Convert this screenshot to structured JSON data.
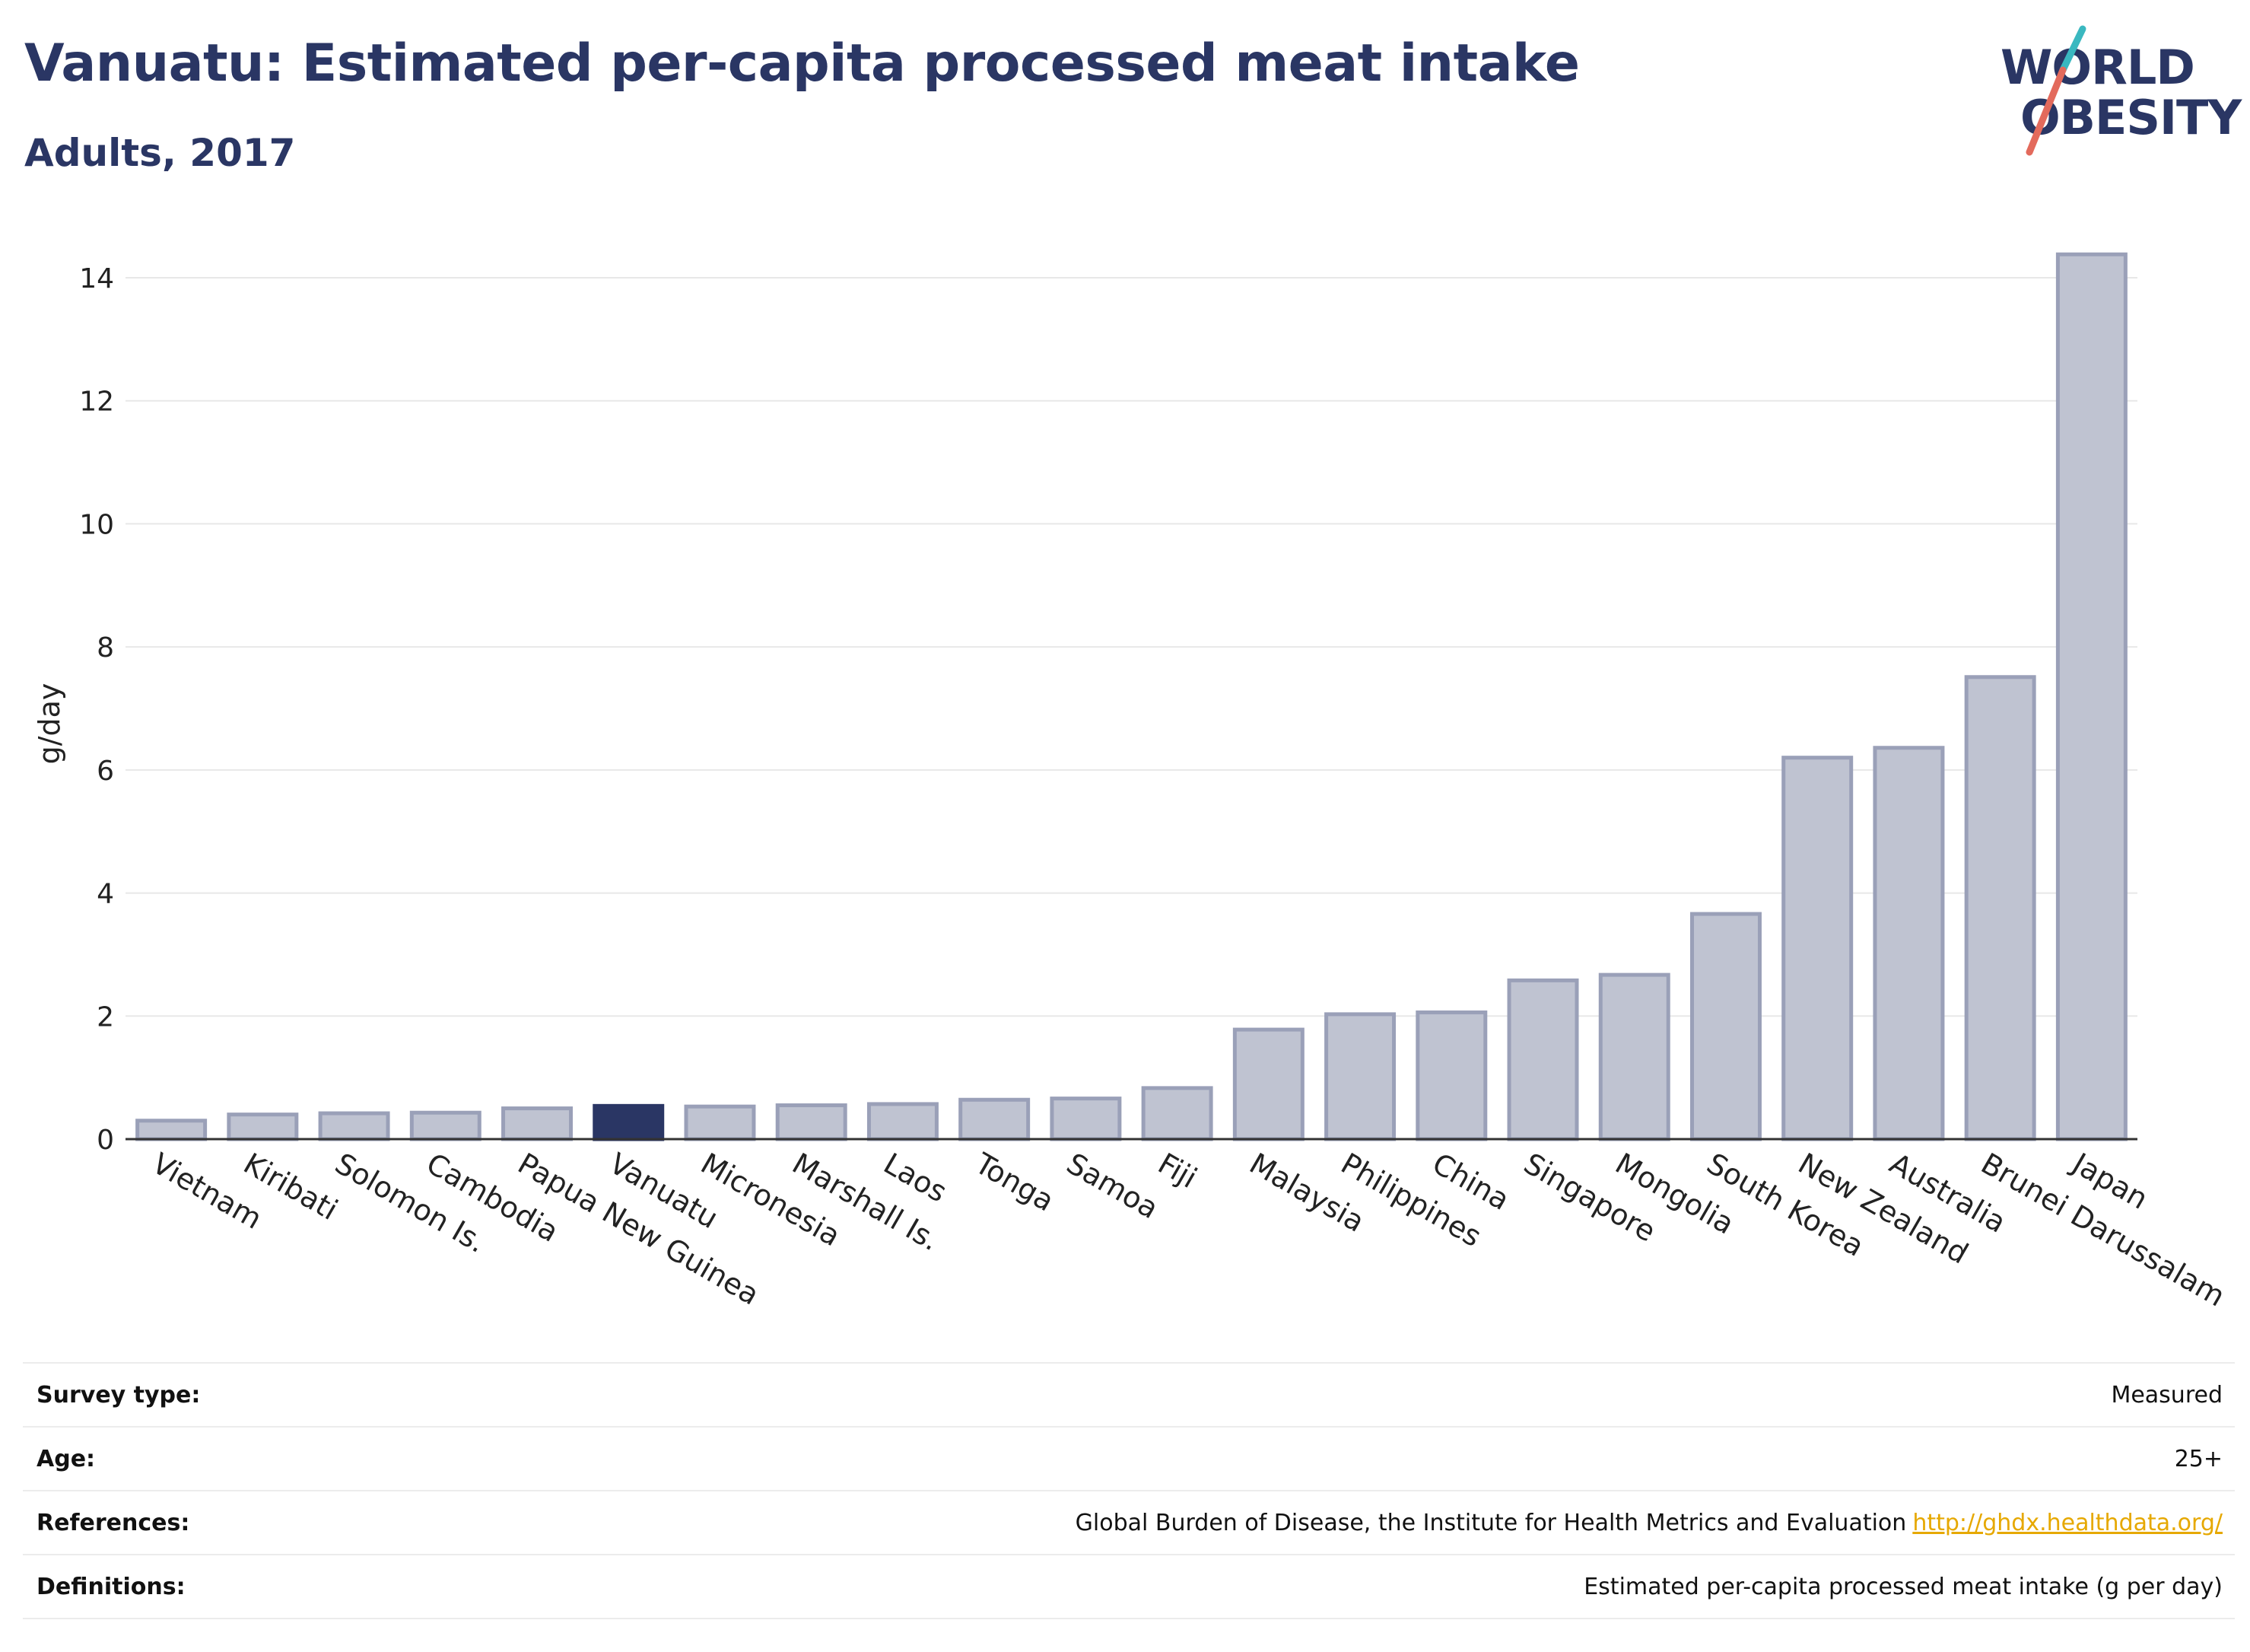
{
  "header": {
    "title": "Vanuatu: Estimated per-capita processed meat intake",
    "subtitle": "Adults, 2017"
  },
  "logo": {
    "line1": "WORLD",
    "line2": "OBESITY",
    "slash_color_top": "#3ab8c0",
    "slash_color_bottom": "#e36a5c"
  },
  "colors": {
    "highlight": "#2a3664",
    "bar_fill": "#bfc3d1",
    "bar_stroke": "#9aa0b8",
    "text_dark": "#2a3664",
    "link": "#e6a800"
  },
  "chart_data": {
    "type": "bar",
    "ylabel": "g/day",
    "ylim": [
      0,
      14.8
    ],
    "yticks": [
      0,
      2,
      4,
      6,
      8,
      10,
      12,
      14
    ],
    "grid": true,
    "highlight_category": "Vanuatu",
    "categories": [
      "Vietnam",
      "Kiribati",
      "Solomon Is.",
      "Cambodia",
      "Papua New Guinea",
      "Vanuatu",
      "Micronesia",
      "Marshall Is.",
      "Laos",
      "Tonga",
      "Samoa",
      "Fiji",
      "Malaysia",
      "Philippines",
      "China",
      "Singapore",
      "Mongolia",
      "South Korea",
      "New Zealand",
      "Australia",
      "Brunei Darussalam",
      "Japan"
    ],
    "values": [
      0.3,
      0.4,
      0.42,
      0.43,
      0.5,
      0.54,
      0.53,
      0.55,
      0.57,
      0.64,
      0.66,
      0.83,
      1.78,
      2.03,
      2.06,
      2.58,
      2.67,
      3.66,
      6.2,
      6.36,
      7.51,
      14.38
    ]
  },
  "info": {
    "survey_label": "Survey type:",
    "survey_value": "Measured",
    "age_label": "Age:",
    "age_value": "25+",
    "references_label": "References:",
    "references_value": "Global Burden of Disease, the Institute for Health Metrics and Evaluation",
    "references_link": "http://ghdx.healthdata.org/",
    "definitions_label": "Definitions:",
    "definitions_value": "Estimated per-capita processed meat intake (g per day)"
  }
}
